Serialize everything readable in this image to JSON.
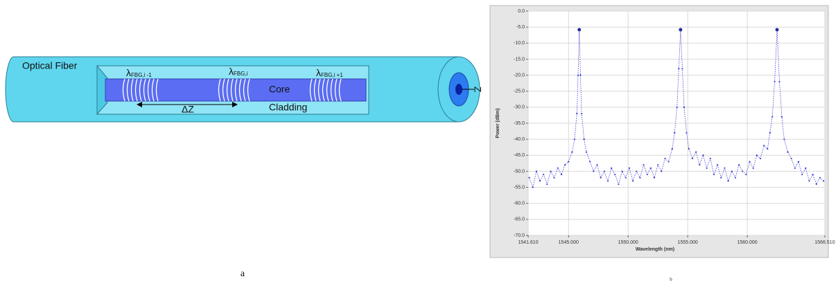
{
  "diagram": {
    "fiber_label": "Optical Fiber",
    "gratings": [
      {
        "symbol": "λ",
        "subscript": "FBG,i -1"
      },
      {
        "symbol": "λ",
        "subscript": "FBG,i"
      },
      {
        "symbol": "λ",
        "subscript": "FBG,i +1"
      }
    ],
    "core_label": "Core",
    "cladding_label": "Cladding",
    "spacing_label": "ΔZ",
    "axis_label": "Z"
  },
  "panel_labels": [
    "a",
    "b"
  ],
  "chart_data": {
    "type": "scatter",
    "x_label": "Wavelength (nm)",
    "y_label": "Power (dBm)",
    "color": "#3b3bd6",
    "grid": true,
    "xlim": [
      1541.61,
      1566.51
    ],
    "xticks": [
      {
        "value": 1541.61,
        "label": "1541.610"
      },
      {
        "value": 1545,
        "label": "1545.000"
      },
      {
        "value": 1550,
        "label": "1550.000"
      },
      {
        "value": 1555,
        "label": "1555.000"
      },
      {
        "value": 1560,
        "label": "1560.000"
      },
      {
        "value": 1566.51,
        "label": "1566.510"
      }
    ],
    "ylim": [
      -70,
      0
    ],
    "yticks": [
      {
        "value": 0,
        "label": "0.0"
      },
      {
        "value": -5,
        "label": "-5.0"
      },
      {
        "value": -10,
        "label": "-10.0"
      },
      {
        "value": -15,
        "label": "-15.0"
      },
      {
        "value": -20,
        "label": "-20.0"
      },
      {
        "value": -25,
        "label": "-25.0"
      },
      {
        "value": -30,
        "label": "-30.0"
      },
      {
        "value": -35,
        "label": "-35.0"
      },
      {
        "value": -40,
        "label": "-40.0"
      },
      {
        "value": -45,
        "label": "-45.0"
      },
      {
        "value": -50,
        "label": "-50.0"
      },
      {
        "value": -55,
        "label": "-55.0"
      },
      {
        "value": -60,
        "label": "-60.0"
      },
      {
        "value": -65,
        "label": "-65.0"
      },
      {
        "value": -70,
        "label": "-70.0"
      }
    ],
    "x": [
      1541.7,
      1542.0,
      1542.3,
      1542.6,
      1542.9,
      1543.2,
      1543.5,
      1543.8,
      1544.1,
      1544.4,
      1544.7,
      1545.0,
      1545.3,
      1545.5,
      1545.7,
      1545.8,
      1545.9,
      1546.0,
      1546.1,
      1546.3,
      1546.5,
      1546.8,
      1547.1,
      1547.4,
      1547.7,
      1548.0,
      1548.3,
      1548.6,
      1548.9,
      1549.2,
      1549.5,
      1549.8,
      1550.1,
      1550.4,
      1550.7,
      1551.0,
      1551.3,
      1551.6,
      1551.9,
      1552.2,
      1552.5,
      1552.8,
      1553.1,
      1553.4,
      1553.7,
      1553.9,
      1554.1,
      1554.25,
      1554.4,
      1554.55,
      1554.7,
      1554.9,
      1555.1,
      1555.4,
      1555.7,
      1556.0,
      1556.3,
      1556.6,
      1556.9,
      1557.2,
      1557.5,
      1557.8,
      1558.1,
      1558.4,
      1558.7,
      1559.0,
      1559.3,
      1559.6,
      1559.9,
      1560.2,
      1560.5,
      1560.8,
      1561.1,
      1561.4,
      1561.7,
      1561.9,
      1562.1,
      1562.3,
      1562.5,
      1562.7,
      1562.9,
      1563.1,
      1563.4,
      1563.7,
      1564.0,
      1564.3,
      1564.6,
      1564.9,
      1565.2,
      1565.5,
      1565.8,
      1566.1,
      1566.4
    ],
    "values": [
      -52,
      -55,
      -50,
      -53,
      -51,
      -54,
      -50,
      -52,
      -49,
      -51,
      -48,
      -47,
      -44,
      -40,
      -32,
      -20,
      -5.8,
      -20,
      -32,
      -40,
      -44,
      -47,
      -50,
      -48,
      -52,
      -50,
      -53,
      -49,
      -51,
      -54,
      -50,
      -52,
      -49,
      -53,
      -50,
      -52,
      -48,
      -51,
      -49,
      -52,
      -48,
      -50,
      -46,
      -47,
      -43,
      -38,
      -30,
      -18,
      -5.8,
      -18,
      -30,
      -38,
      -43,
      -46,
      -44,
      -48,
      -45,
      -49,
      -46,
      -51,
      -48,
      -52,
      -49,
      -53,
      -50,
      -52,
      -48,
      -50,
      -51,
      -47,
      -49,
      -45,
      -46,
      -42,
      -43,
      -38,
      -33,
      -22,
      -5.8,
      -22,
      -33,
      -40,
      -44,
      -46,
      -49,
      -47,
      -51,
      -49,
      -53,
      -51,
      -54,
      -52,
      -53
    ],
    "markers": {
      "x": [
        1545.9,
        1554.4,
        1562.5
      ],
      "values": [
        -5.8,
        -5.8,
        -5.8
      ]
    }
  }
}
